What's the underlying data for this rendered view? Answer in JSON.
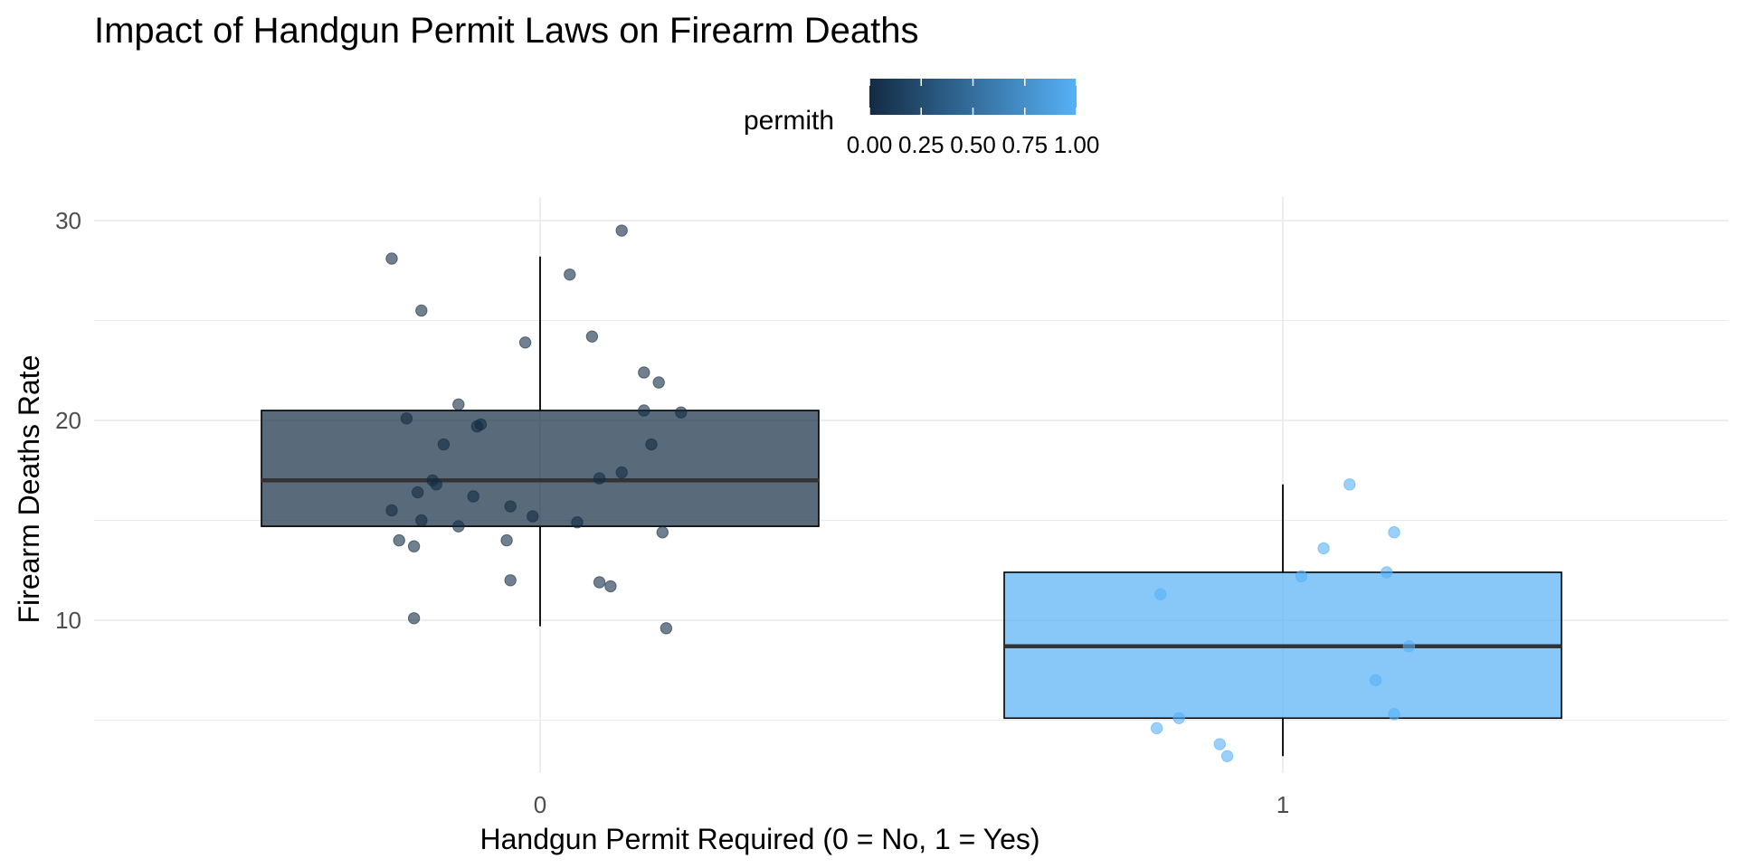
{
  "chart_data": {
    "type": "boxplot",
    "title": "Impact of Handgun Permit Laws on Firearm Deaths",
    "xlabel": "Handgun Permit Required (0 = No, 1 = Yes)",
    "ylabel": "Firearm Deaths Rate",
    "categories": [
      "0",
      "1"
    ],
    "ylim": [
      2.5,
      31
    ],
    "yticks": [
      10,
      20,
      30
    ],
    "grid": true,
    "legend": {
      "title": "permith",
      "placement": "top",
      "labels": [
        "0.00",
        "0.25",
        "0.50",
        "0.75",
        "1.00"
      ],
      "color_low": "#132B43",
      "color_high": "#56B1F7"
    },
    "boxes": [
      {
        "category": "0",
        "permith": 0,
        "min": 9.7,
        "q1": 14.7,
        "median": 17.0,
        "q3": 20.5,
        "max": 28.2
      },
      {
        "category": "1",
        "permith": 1,
        "min": 3.2,
        "q1": 5.1,
        "median": 8.7,
        "q3": 12.4,
        "max": 16.8
      }
    ],
    "points": [
      {
        "category": "0",
        "permith": 0,
        "jitter": -0.2,
        "y": 28.1
      },
      {
        "category": "0",
        "permith": 0,
        "jitter": 0.11,
        "y": 29.5
      },
      {
        "category": "0",
        "permith": 0,
        "jitter": -0.16,
        "y": 25.5
      },
      {
        "category": "0",
        "permith": 0,
        "jitter": 0.04,
        "y": 27.3
      },
      {
        "category": "0",
        "permith": 0,
        "jitter": -0.02,
        "y": 23.9
      },
      {
        "category": "0",
        "permith": 0,
        "jitter": 0.07,
        "y": 24.2
      },
      {
        "category": "0",
        "permith": 0,
        "jitter": 0.14,
        "y": 22.4
      },
      {
        "category": "0",
        "permith": 0,
        "jitter": 0.16,
        "y": 21.9
      },
      {
        "category": "0",
        "permith": 0,
        "jitter": -0.11,
        "y": 20.8
      },
      {
        "category": "0",
        "permith": 0,
        "jitter": 0.14,
        "y": 20.5
      },
      {
        "category": "0",
        "permith": 0,
        "jitter": 0.19,
        "y": 20.4
      },
      {
        "category": "0",
        "permith": 0,
        "jitter": -0.18,
        "y": 20.1
      },
      {
        "category": "0",
        "permith": 0,
        "jitter": -0.08,
        "y": 19.8
      },
      {
        "category": "0",
        "permith": 0,
        "jitter": -0.085,
        "y": 19.7
      },
      {
        "category": "0",
        "permith": 0,
        "jitter": -0.13,
        "y": 18.8
      },
      {
        "category": "0",
        "permith": 0,
        "jitter": 0.15,
        "y": 18.8
      },
      {
        "category": "0",
        "permith": 0,
        "jitter": 0.11,
        "y": 17.4
      },
      {
        "category": "0",
        "permith": 0,
        "jitter": 0.08,
        "y": 17.1
      },
      {
        "category": "0",
        "permith": 0,
        "jitter": -0.145,
        "y": 17.0
      },
      {
        "category": "0",
        "permith": 0,
        "jitter": -0.14,
        "y": 16.8
      },
      {
        "category": "0",
        "permith": 0,
        "jitter": -0.165,
        "y": 16.4
      },
      {
        "category": "0",
        "permith": 0,
        "jitter": -0.09,
        "y": 16.2
      },
      {
        "category": "0",
        "permith": 0,
        "jitter": -0.04,
        "y": 15.7
      },
      {
        "category": "0",
        "permith": 0,
        "jitter": -0.2,
        "y": 15.5
      },
      {
        "category": "0",
        "permith": 0,
        "jitter": -0.01,
        "y": 15.2
      },
      {
        "category": "0",
        "permith": 0,
        "jitter": -0.16,
        "y": 15.0
      },
      {
        "category": "0",
        "permith": 0,
        "jitter": 0.05,
        "y": 14.9
      },
      {
        "category": "0",
        "permith": 0,
        "jitter": -0.11,
        "y": 14.7
      },
      {
        "category": "0",
        "permith": 0,
        "jitter": 0.165,
        "y": 14.4
      },
      {
        "category": "0",
        "permith": 0,
        "jitter": -0.19,
        "y": 14.0
      },
      {
        "category": "0",
        "permith": 0,
        "jitter": -0.045,
        "y": 14.0
      },
      {
        "category": "0",
        "permith": 0,
        "jitter": -0.17,
        "y": 13.7
      },
      {
        "category": "0",
        "permith": 0,
        "jitter": -0.04,
        "y": 12.0
      },
      {
        "category": "0",
        "permith": 0,
        "jitter": 0.08,
        "y": 11.9
      },
      {
        "category": "0",
        "permith": 0,
        "jitter": 0.095,
        "y": 11.7
      },
      {
        "category": "0",
        "permith": 0,
        "jitter": -0.17,
        "y": 10.1
      },
      {
        "category": "0",
        "permith": 0,
        "jitter": 0.17,
        "y": 9.6
      },
      {
        "category": "1",
        "permith": 1,
        "jitter": 0.09,
        "y": 16.8
      },
      {
        "category": "1",
        "permith": 1,
        "jitter": 0.15,
        "y": 14.4
      },
      {
        "category": "1",
        "permith": 1,
        "jitter": 0.055,
        "y": 13.6
      },
      {
        "category": "1",
        "permith": 1,
        "jitter": 0.14,
        "y": 12.4
      },
      {
        "category": "1",
        "permith": 1,
        "jitter": 0.025,
        "y": 12.2
      },
      {
        "category": "1",
        "permith": 1,
        "jitter": -0.165,
        "y": 11.3
      },
      {
        "category": "1",
        "permith": 1,
        "jitter": 0.17,
        "y": 8.7
      },
      {
        "category": "1",
        "permith": 1,
        "jitter": 0.125,
        "y": 7.0
      },
      {
        "category": "1",
        "permith": 1,
        "jitter": 0.15,
        "y": 5.3
      },
      {
        "category": "1",
        "permith": 1,
        "jitter": -0.14,
        "y": 5.1
      },
      {
        "category": "1",
        "permith": 1,
        "jitter": -0.17,
        "y": 4.6
      },
      {
        "category": "1",
        "permith": 1,
        "jitter": -0.085,
        "y": 3.8
      },
      {
        "category": "1",
        "permith": 1,
        "jitter": -0.075,
        "y": 3.2
      }
    ]
  }
}
